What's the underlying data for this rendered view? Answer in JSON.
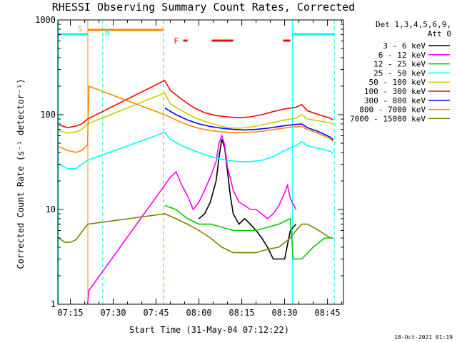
{
  "chart_data": {
    "type": "line",
    "title": "RHESSI Observing Summary Count Rates, Corrected",
    "xlabel": "Start Time (31-May-04 07:12:22)",
    "ylabel": "Corrected Count Rate (s⁻¹ detector⁻¹)",
    "x_tick_labels": [
      "07:15",
      "07:30",
      "07:45",
      "08:00",
      "08:15",
      "08:30",
      "08:45"
    ],
    "x_ticks_min": [
      15,
      30,
      45,
      60,
      75,
      90,
      105
    ],
    "xlim_min": [
      10.6,
      110.6
    ],
    "y_scale": "log",
    "ylim": [
      1,
      1000
    ],
    "y_tick_labels": [
      "1",
      "10",
      "100",
      "1000"
    ],
    "legend_header": [
      "Det 1,3,4,5,6,9,",
      "Att 0"
    ],
    "series": [
      {
        "name": "3 - 6 keV",
        "color": "#000000",
        "points": [
          [
            60,
            8
          ],
          [
            62,
            9
          ],
          [
            64,
            12
          ],
          [
            66,
            20
          ],
          [
            67,
            35
          ],
          [
            68,
            55
          ],
          [
            69,
            45
          ],
          [
            70,
            25
          ],
          [
            71,
            14
          ],
          [
            72,
            9
          ],
          [
            74,
            7
          ],
          [
            76,
            8
          ],
          [
            78,
            7
          ],
          [
            80,
            6
          ],
          [
            82,
            5
          ],
          [
            84,
            4
          ],
          [
            86,
            3
          ],
          [
            88,
            3
          ],
          [
            90,
            3
          ],
          [
            92,
            6
          ],
          [
            94,
            7
          ]
        ]
      },
      {
        "name": "6 - 12 keV",
        "color": "#ff00ff",
        "points": [
          [
            21,
            1
          ],
          [
            21.5,
            1.4
          ],
          [
            48,
            18
          ],
          [
            50,
            22
          ],
          [
            52,
            25
          ],
          [
            54,
            18
          ],
          [
            56,
            14
          ],
          [
            58,
            10
          ],
          [
            60,
            12
          ],
          [
            62,
            16
          ],
          [
            64,
            22
          ],
          [
            66,
            32
          ],
          [
            67,
            50
          ],
          [
            68,
            60
          ],
          [
            69,
            48
          ],
          [
            70,
            28
          ],
          [
            72,
            16
          ],
          [
            74,
            12
          ],
          [
            76,
            11
          ],
          [
            78,
            10
          ],
          [
            80,
            10
          ],
          [
            82,
            9
          ],
          [
            84,
            8
          ],
          [
            86,
            9
          ],
          [
            88,
            11
          ],
          [
            90,
            15
          ],
          [
            91,
            18
          ],
          [
            92,
            13
          ],
          [
            94,
            10
          ]
        ]
      },
      {
        "name": "12 - 25 keV",
        "color": "#00cc00",
        "points": [
          [
            48,
            11
          ],
          [
            52,
            10
          ],
          [
            56,
            8
          ],
          [
            60,
            7
          ],
          [
            64,
            7
          ],
          [
            68,
            6.5
          ],
          [
            72,
            6
          ],
          [
            76,
            6
          ],
          [
            80,
            6
          ],
          [
            84,
            6.5
          ],
          [
            88,
            7
          ],
          [
            92,
            8
          ],
          [
            93,
            3
          ],
          [
            96,
            3
          ],
          [
            100,
            4
          ],
          [
            104,
            5
          ],
          [
            107,
            5
          ]
        ]
      },
      {
        "name": "25 - 50 keV",
        "color": "#00ffff",
        "points": [
          [
            11,
            30
          ],
          [
            14,
            27
          ],
          [
            17,
            27
          ],
          [
            19,
            30
          ],
          [
            21,
            33
          ],
          [
            48,
            65
          ],
          [
            50,
            55
          ],
          [
            54,
            47
          ],
          [
            58,
            42
          ],
          [
            62,
            38
          ],
          [
            66,
            35
          ],
          [
            70,
            33
          ],
          [
            74,
            32
          ],
          [
            78,
            32
          ],
          [
            82,
            33
          ],
          [
            86,
            36
          ],
          [
            90,
            42
          ],
          [
            94,
            47
          ],
          [
            96,
            52
          ],
          [
            98,
            47
          ],
          [
            102,
            44
          ],
          [
            106,
            41
          ],
          [
            107,
            39
          ]
        ]
      },
      {
        "name": "50 - 100 keV",
        "color": "#cccc00",
        "points": [
          [
            11,
            68
          ],
          [
            14,
            64
          ],
          [
            17,
            66
          ],
          [
            19,
            70
          ],
          [
            21,
            80
          ],
          [
            48,
            170
          ],
          [
            50,
            130
          ],
          [
            54,
            110
          ],
          [
            58,
            95
          ],
          [
            62,
            85
          ],
          [
            66,
            78
          ],
          [
            70,
            73
          ],
          [
            74,
            72
          ],
          [
            78,
            74
          ],
          [
            82,
            78
          ],
          [
            86,
            83
          ],
          [
            90,
            88
          ],
          [
            94,
            92
          ],
          [
            96,
            100
          ],
          [
            98,
            90
          ],
          [
            102,
            86
          ],
          [
            106,
            82
          ],
          [
            107,
            80
          ]
        ]
      },
      {
        "name": "100 - 300 keV",
        "color": "#ff0000",
        "points": [
          [
            11,
            78
          ],
          [
            14,
            73
          ],
          [
            17,
            76
          ],
          [
            19,
            80
          ],
          [
            21,
            90
          ],
          [
            48,
            230
          ],
          [
            50,
            180
          ],
          [
            54,
            145
          ],
          [
            58,
            120
          ],
          [
            62,
            105
          ],
          [
            66,
            98
          ],
          [
            70,
            95
          ],
          [
            74,
            93
          ],
          [
            78,
            95
          ],
          [
            82,
            100
          ],
          [
            86,
            108
          ],
          [
            90,
            115
          ],
          [
            94,
            120
          ],
          [
            96,
            128
          ],
          [
            98,
            110
          ],
          [
            102,
            100
          ],
          [
            106,
            92
          ],
          [
            107,
            88
          ]
        ]
      },
      {
        "name": "300 - 800 keV",
        "color": "#0000ff",
        "points": [
          [
            48,
            118
          ],
          [
            52,
            100
          ],
          [
            56,
            88
          ],
          [
            60,
            80
          ],
          [
            64,
            75
          ],
          [
            68,
            72
          ],
          [
            72,
            70
          ],
          [
            76,
            69
          ],
          [
            80,
            70
          ],
          [
            84,
            72
          ],
          [
            88,
            75
          ],
          [
            92,
            78
          ],
          [
            96,
            80
          ],
          [
            98,
            73
          ],
          [
            102,
            66
          ],
          [
            106,
            58
          ],
          [
            107,
            54
          ]
        ]
      },
      {
        "name": "800 - 7000 keV",
        "color": "#ff8800",
        "points": [
          [
            11,
            46
          ],
          [
            14,
            42
          ],
          [
            17,
            40
          ],
          [
            19,
            42
          ],
          [
            21,
            48
          ],
          [
            21.5,
            200
          ],
          [
            48,
            100
          ],
          [
            52,
            88
          ],
          [
            56,
            78
          ],
          [
            60,
            72
          ],
          [
            64,
            68
          ],
          [
            68,
            66
          ],
          [
            72,
            65
          ],
          [
            76,
            65
          ],
          [
            80,
            66
          ],
          [
            84,
            68
          ],
          [
            88,
            71
          ],
          [
            92,
            74
          ],
          [
            96,
            75
          ],
          [
            98,
            70
          ],
          [
            102,
            63
          ],
          [
            106,
            56
          ],
          [
            107,
            52
          ]
        ]
      },
      {
        "name": "7000 - 15000 keV",
        "color": "#808000",
        "points": [
          [
            11,
            5
          ],
          [
            13,
            4.5
          ],
          [
            15,
            4.5
          ],
          [
            17,
            4.8
          ],
          [
            21,
            7
          ],
          [
            48,
            9
          ],
          [
            52,
            8
          ],
          [
            56,
            7
          ],
          [
            60,
            6
          ],
          [
            64,
            5
          ],
          [
            68,
            4
          ],
          [
            72,
            3.5
          ],
          [
            76,
            3.5
          ],
          [
            80,
            3.5
          ],
          [
            84,
            3.8
          ],
          [
            88,
            4
          ],
          [
            92,
            5
          ],
          [
            94,
            6
          ],
          [
            96,
            7
          ],
          [
            98,
            7
          ],
          [
            102,
            6
          ],
          [
            106,
            5
          ],
          [
            107,
            5
          ]
        ]
      }
    ],
    "flag_labels": {
      "s": "S",
      "n": "N",
      "f": "F"
    }
  },
  "timestamp": "18-Oct-2021 01:19"
}
